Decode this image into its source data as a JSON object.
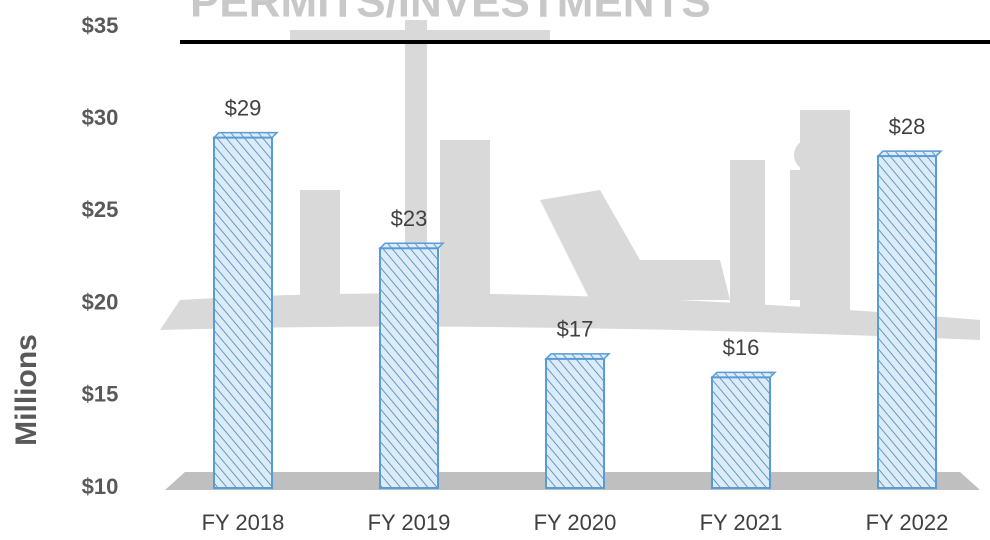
{
  "chart_data": {
    "type": "bar",
    "title": "PERMITS/INVESTMENTS",
    "y_label": "Millions",
    "categories": [
      "FY 2018",
      "FY 2019",
      "FY 2020",
      "FY 2021",
      "FY 2022"
    ],
    "values": [
      29,
      23,
      17,
      16,
      28
    ],
    "value_labels": [
      "$29",
      "$23",
      "$17",
      "$16",
      "$28"
    ],
    "color": "#5b9bd5",
    "ylim": [
      10,
      35
    ],
    "yticks": [
      {
        "value": 10,
        "label": "$10"
      },
      {
        "value": 15,
        "label": "$15"
      },
      {
        "value": 20,
        "label": "$20"
      },
      {
        "value": 25,
        "label": "$25"
      },
      {
        "value": 30,
        "label": "$30"
      },
      {
        "value": 35,
        "label": "$35"
      }
    ],
    "grid": false
  }
}
